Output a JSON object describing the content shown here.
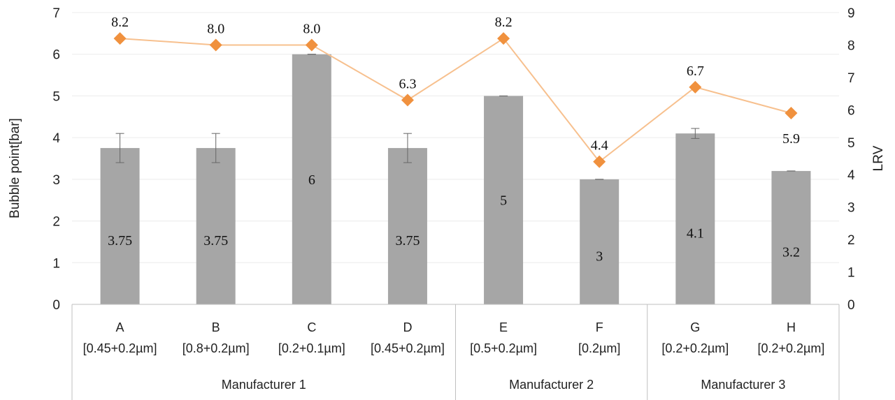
{
  "chart_data": {
    "type": "bar",
    "categories": [
      "A",
      "B",
      "C",
      "D",
      "E",
      "F",
      "G",
      "H"
    ],
    "category_sublabels": [
      "[0.45+0.2µm]",
      "[0.8+0.2µm]",
      "[0.2+0.1µm]",
      "[0.45+0.2µm]",
      "[0.5+0.2µm]",
      "[0.2µm]",
      "[0.2+0.2µm]",
      "[0.2+0.2µm]"
    ],
    "groups": [
      {
        "label": "Manufacturer 1",
        "categories": [
          "A",
          "B",
          "C",
          "D"
        ]
      },
      {
        "label": "Manufacturer 2",
        "categories": [
          "E",
          "F"
        ]
      },
      {
        "label": "Manufacturer 3",
        "categories": [
          "G",
          "H"
        ]
      }
    ],
    "series": [
      {
        "type": "bar",
        "axis": "left",
        "values": [
          3.75,
          3.75,
          6,
          3.75,
          5,
          3,
          4.1,
          3.2
        ],
        "errors": [
          0.35,
          0.35,
          0,
          0.35,
          0,
          0,
          0.12,
          0
        ],
        "data_labels": [
          "3.75",
          "3.75",
          "6",
          "3.75",
          "5",
          "3",
          "4.1",
          "3.2"
        ],
        "color": "#a6a6a6"
      },
      {
        "type": "line",
        "axis": "right",
        "values": [
          8.2,
          8.0,
          8.0,
          6.3,
          8.2,
          4.4,
          6.7,
          5.9
        ],
        "data_labels": [
          "8.2",
          "8.0",
          "8.0",
          "6.3",
          "8.2",
          "4.4",
          "6.7",
          "5.9"
        ],
        "color": "#f0913e",
        "line_color": "#f7c08e",
        "marker": "diamond"
      }
    ],
    "ylabel": "Bubble point[bar]",
    "ylabel_right": "LRV",
    "ylim": [
      0,
      7
    ],
    "ylim_right": [
      0,
      9
    ],
    "yticks": [
      "0",
      "1",
      "2",
      "3",
      "4",
      "5",
      "6",
      "7"
    ],
    "yticks_right": [
      "0",
      "1",
      "2",
      "3",
      "4",
      "5",
      "6",
      "7",
      "8",
      "9"
    ],
    "grid": true,
    "legend": "none"
  }
}
